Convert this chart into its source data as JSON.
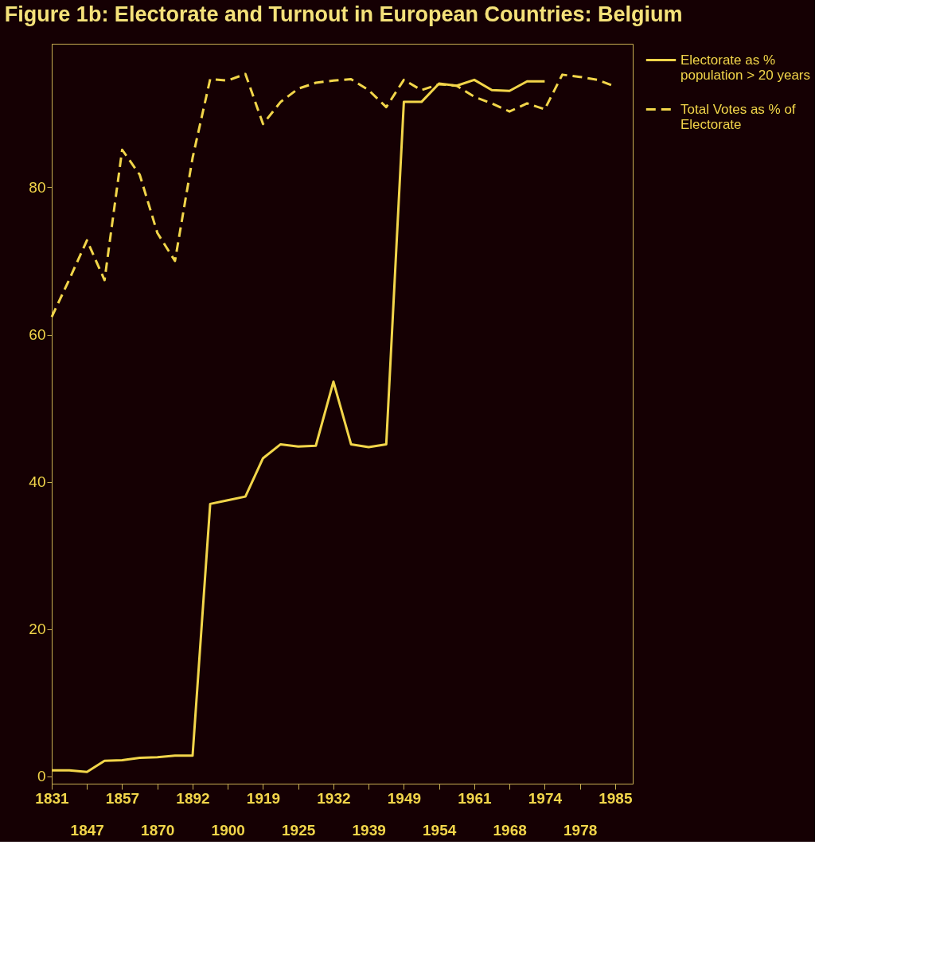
{
  "chart_data": {
    "type": "line",
    "title": "Figure 1b: Electorate and Turnout in European Countries: Belgium",
    "categories": [
      "1831",
      null,
      "1847",
      null,
      "1857",
      null,
      "1870",
      null,
      "1892",
      null,
      "1900",
      null,
      "1919",
      null,
      "1925",
      null,
      "1932",
      null,
      "1939",
      null,
      "1949",
      null,
      "1954",
      null,
      "1961",
      null,
      "1968",
      null,
      "1974",
      null,
      "1978",
      null,
      "1985"
    ],
    "series": [
      {
        "name": "Electorate as % population > 20 years",
        "color": "#f2d54a",
        "line_style": "solid",
        "values": [
          0.8,
          0.8,
          0.6,
          2.1,
          2.2,
          2.5,
          2.6,
          2.8,
          2.8,
          37,
          37.5,
          38,
          43.2,
          45.1,
          44.8,
          44.9,
          53.6,
          45.1,
          44.7,
          45.1,
          91.6,
          91.6,
          94.1,
          93.8,
          94.6,
          93.2,
          93.1,
          94.4,
          94.4,
          null,
          null,
          null,
          null
        ]
      },
      {
        "name": "Total Votes as % of Electorate",
        "color": "#f2d54a",
        "line_style": "dashed",
        "values": [
          62.4,
          67.5,
          72.8,
          67.4,
          85.1,
          81.7,
          73.8,
          70.0,
          84.0,
          94.7,
          94.5,
          95.4,
          88.6,
          91.6,
          93.4,
          94.2,
          94.5,
          94.7,
          93.2,
          90.9,
          94.6,
          93.2,
          94.0,
          93.8,
          92.3,
          91.4,
          90.3,
          91.4,
          90.6,
          95.3,
          95.0,
          94.6,
          93.7
        ]
      }
    ],
    "ylim": [
      -1,
      99.5
    ],
    "yticks": [
      0,
      20,
      40,
      60,
      80
    ],
    "grid": false,
    "legend": "right"
  }
}
